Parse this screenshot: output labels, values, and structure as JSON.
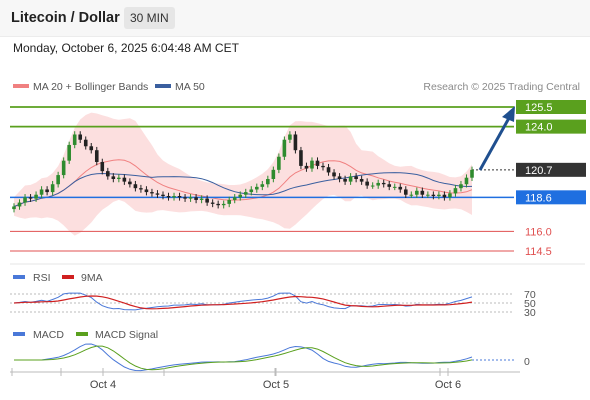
{
  "header": {
    "title": "Litecoin / Dollar",
    "timeframe": "30 MIN"
  },
  "datetime": "Monday, October 6, 2025 6:04:48 AM CET",
  "legend": {
    "ma20_label": "MA 20 + Bollinger Bands",
    "ma50_label": "MA 50",
    "credit": "Research © 2025 Trading Central"
  },
  "colors": {
    "accent": "#3a6fb0",
    "ma20": "#f08080",
    "ma50": "#3a5f9f",
    "bands": "#fbd9d9",
    "resistance": "#5aa01e",
    "support": "#1f6fe0",
    "levels": "#e05050",
    "rsi": "#4a78d8",
    "rsi_ma": "#d02020",
    "macd": "#4a78d8",
    "macd_signal": "#5aa01e",
    "arrow": "#1f4f8f"
  },
  "chart_data": {
    "type": "candlestick",
    "x_ticks": [
      "Oct 4",
      "Oct 5",
      "Oct 6"
    ],
    "close": [
      117.9,
      118.2,
      118.6,
      118.5,
      118.8,
      119.2,
      119.0,
      119.6,
      120.3,
      121.4,
      122.6,
      123.4,
      123.0,
      122.5,
      122.2,
      121.3,
      120.6,
      120.2,
      120.0,
      120.1,
      119.8,
      119.6,
      119.3,
      119.2,
      119.0,
      118.9,
      118.8,
      118.7,
      118.6,
      118.7,
      118.6,
      118.5,
      118.6,
      118.4,
      118.5,
      118.2,
      118.1,
      118.0,
      118.1,
      118.4,
      118.6,
      118.8,
      119.0,
      119.2,
      119.4,
      119.6,
      120.0,
      120.7,
      121.7,
      123.0,
      123.4,
      122.2,
      121.0,
      120.8,
      121.4,
      121.0,
      120.9,
      120.5,
      120.2,
      120.0,
      119.8,
      120.2,
      120.0,
      119.8,
      119.5,
      119.5,
      119.7,
      119.6,
      119.4,
      119.4,
      119.2,
      118.8,
      118.8,
      119.1,
      118.8,
      118.8,
      118.7,
      118.8,
      118.6,
      118.9,
      119.3,
      119.6,
      120.1,
      120.7
    ],
    "series": [
      {
        "name": "MA 20 + Bollinger Bands"
      },
      {
        "name": "MA 50"
      },
      {
        "name": "RSI",
        "panel": "rsi"
      },
      {
        "name": "9MA",
        "panel": "rsi"
      },
      {
        "name": "MACD",
        "panel": "macd"
      },
      {
        "name": "MACD Signal",
        "panel": "macd"
      }
    ],
    "levels": [
      {
        "value": 125.5,
        "label": "125.5",
        "kind": "resistance"
      },
      {
        "value": 124.0,
        "label": "124.0",
        "kind": "resistance"
      },
      {
        "value": 120.7,
        "label": "120.7",
        "kind": "last"
      },
      {
        "value": 118.6,
        "label": "118.6",
        "kind": "support"
      },
      {
        "value": 116.0,
        "label": "116.0",
        "kind": "level"
      },
      {
        "value": 114.5,
        "label": "114.5",
        "kind": "level"
      }
    ],
    "rsi_ticks": [
      "70",
      "50",
      "30"
    ],
    "macd_ticks": [
      "0"
    ],
    "ylim": [
      114.5,
      125.5
    ],
    "grid": false,
    "legend": "top-left"
  }
}
